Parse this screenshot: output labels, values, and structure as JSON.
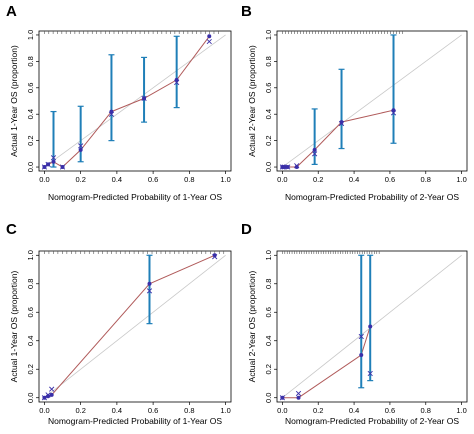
{
  "colors": {
    "bar": "#1f7fb8",
    "curve": "#b05a5a",
    "point": "#3a2fa8",
    "cross": "#3a2fa8",
    "diagonal": "#c8c8c8",
    "rug": "#555555"
  },
  "chart_data": [
    {
      "panel": "A",
      "type": "scatter",
      "xlabel": "Nomogram-Predicted Probability of 1-Year OS",
      "ylabel": "Actual 1-Year OS (proportion)",
      "xlim": [
        -0.03,
        1.03
      ],
      "ylim": [
        -0.03,
        1.03
      ],
      "xticks": [
        "0.0",
        "0.2",
        "0.4",
        "0.6",
        "0.8",
        "1.0"
      ],
      "yticks": [
        "0.0",
        "0.2",
        "0.4",
        "0.6",
        "0.8",
        "1.0"
      ],
      "grid": false,
      "diagonal": true,
      "points": [
        {
          "x": 0.0,
          "y": 0.0,
          "lo": 0.0,
          "hi": 0.0,
          "xcorr": 0.0
        },
        {
          "x": 0.02,
          "y": 0.02,
          "lo": 0.0,
          "hi": 0.0,
          "xcorr": 0.02
        },
        {
          "x": 0.05,
          "y": 0.04,
          "lo": 0.0,
          "hi": 0.42,
          "xcorr": 0.07
        },
        {
          "x": 0.1,
          "y": 0.0,
          "lo": 0.0,
          "hi": 0.0,
          "xcorr": 0.0
        },
        {
          "x": 0.2,
          "y": 0.13,
          "lo": 0.04,
          "hi": 0.46,
          "xcorr": 0.16
        },
        {
          "x": 0.37,
          "y": 0.42,
          "lo": 0.2,
          "hi": 0.85,
          "xcorr": 0.4
        },
        {
          "x": 0.55,
          "y": 0.52,
          "lo": 0.34,
          "hi": 0.83,
          "xcorr": 0.52
        },
        {
          "x": 0.73,
          "y": 0.66,
          "lo": 0.45,
          "hi": 0.99,
          "xcorr": 0.64
        },
        {
          "x": 0.91,
          "y": 0.99,
          "lo": 0.99,
          "hi": 0.99,
          "xcorr": 0.95
        }
      ]
    },
    {
      "panel": "B",
      "type": "scatter",
      "xlabel": "Nomogram-Predicted Probability of 2-Year OS",
      "ylabel": "Actual 2-Year OS (proportion)",
      "xlim": [
        -0.03,
        1.03
      ],
      "ylim": [
        -0.03,
        1.03
      ],
      "xticks": [
        "0.0",
        "0.2",
        "0.4",
        "0.6",
        "0.8",
        "1.0"
      ],
      "yticks": [
        "0.0",
        "0.2",
        "0.4",
        "0.6",
        "0.8",
        "1.0"
      ],
      "grid": false,
      "diagonal": true,
      "points": [
        {
          "x": 0.0,
          "y": 0.0,
          "lo": 0.0,
          "hi": 0.0,
          "xcorr": 0.0
        },
        {
          "x": 0.01,
          "y": 0.0,
          "lo": 0.0,
          "hi": 0.0,
          "xcorr": 0.0
        },
        {
          "x": 0.03,
          "y": 0.0,
          "lo": 0.0,
          "hi": 0.0,
          "xcorr": 0.0
        },
        {
          "x": 0.08,
          "y": 0.0,
          "lo": 0.0,
          "hi": 0.0,
          "xcorr": 0.01
        },
        {
          "x": 0.18,
          "y": 0.13,
          "lo": 0.02,
          "hi": 0.44,
          "xcorr": 0.1
        },
        {
          "x": 0.33,
          "y": 0.34,
          "lo": 0.14,
          "hi": 0.74,
          "xcorr": 0.33
        },
        {
          "x": 0.62,
          "y": 0.43,
          "lo": 0.18,
          "hi": 1.0,
          "xcorr": 0.41
        }
      ]
    },
    {
      "panel": "C",
      "type": "scatter",
      "xlabel": "Nomogram-Predicted Probability of 1-Year OS",
      "ylabel": "Actual 1-Year OS (proportion)",
      "xlim": [
        -0.03,
        1.03
      ],
      "ylim": [
        -0.03,
        1.03
      ],
      "xticks": [
        "0.0",
        "0.2",
        "0.4",
        "0.6",
        "0.8",
        "1.0"
      ],
      "yticks": [
        "0.0",
        "0.2",
        "0.4",
        "0.6",
        "0.8",
        "1.0"
      ],
      "grid": false,
      "diagonal": true,
      "points": [
        {
          "x": 0.0,
          "y": 0.0,
          "lo": 0.0,
          "hi": 0.0,
          "xcorr": 0.0
        },
        {
          "x": 0.02,
          "y": 0.01,
          "lo": 0.0,
          "hi": 0.0,
          "xcorr": 0.02
        },
        {
          "x": 0.04,
          "y": 0.02,
          "lo": 0.0,
          "hi": 0.0,
          "xcorr": 0.06
        },
        {
          "x": 0.58,
          "y": 0.8,
          "lo": 0.52,
          "hi": 1.0,
          "xcorr": 0.75
        },
        {
          "x": 0.94,
          "y": 1.0,
          "lo": 1.0,
          "hi": 1.0,
          "xcorr": 0.99
        }
      ]
    },
    {
      "panel": "D",
      "type": "scatter",
      "xlabel": "Nomogram-Predicted Probability of 2-Year OS",
      "ylabel": "Actual 2-Year OS (proportion)",
      "xlim": [
        -0.03,
        1.03
      ],
      "ylim": [
        -0.03,
        1.03
      ],
      "xticks": [
        "0.0",
        "0.2",
        "0.4",
        "0.6",
        "0.8",
        "1.0"
      ],
      "yticks": [
        "0.0",
        "0.2",
        "0.4",
        "0.6",
        "0.8",
        "1.0"
      ],
      "grid": false,
      "diagonal": true,
      "points": [
        {
          "x": 0.0,
          "y": 0.0,
          "lo": 0.0,
          "hi": 0.0,
          "xcorr": 0.0
        },
        {
          "x": 0.09,
          "y": 0.0,
          "lo": 0.0,
          "hi": 0.0,
          "xcorr": 0.03
        },
        {
          "x": 0.44,
          "y": 0.3,
          "lo": 0.07,
          "hi": 1.0,
          "xcorr": 0.43
        },
        {
          "x": 0.49,
          "y": 0.5,
          "lo": 0.12,
          "hi": 1.0,
          "xcorr": 0.17
        }
      ]
    }
  ]
}
